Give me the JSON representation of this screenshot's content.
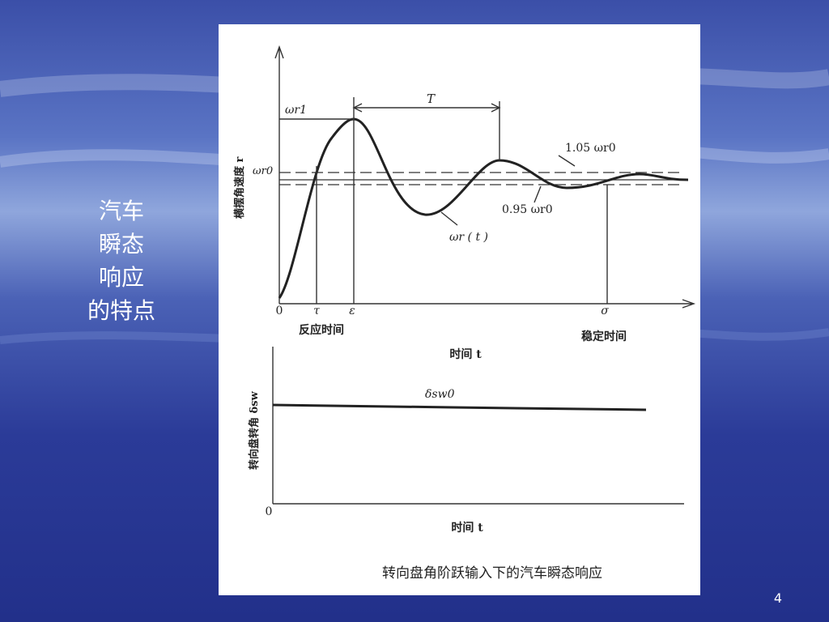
{
  "slide": {
    "side_title": [
      "汽车",
      "瞬态",
      "响应",
      "的特点"
    ],
    "page_number": "4"
  },
  "figure": {
    "top": {
      "y_axis_label": "横摆角速度 r",
      "x_labels": [
        "0",
        "τ",
        "ε",
        "σ"
      ],
      "x_captions": [
        "反应时间",
        "稳定时间"
      ],
      "x_axis_label": "时间 t",
      "annotations": {
        "peak": "ωr1",
        "steady": "ωr0",
        "period": "T",
        "upper": "1.05 ωr0",
        "lower": "0.95 ωr0",
        "curve": "ωr ( t )"
      }
    },
    "bottom": {
      "y_axis_label": "转向盘转角 δsw",
      "origin": "0",
      "level": "δsw0",
      "x_axis_label": "时间 t"
    },
    "caption": "转向盘角阶跃输入下的汽车瞬态响应"
  }
}
